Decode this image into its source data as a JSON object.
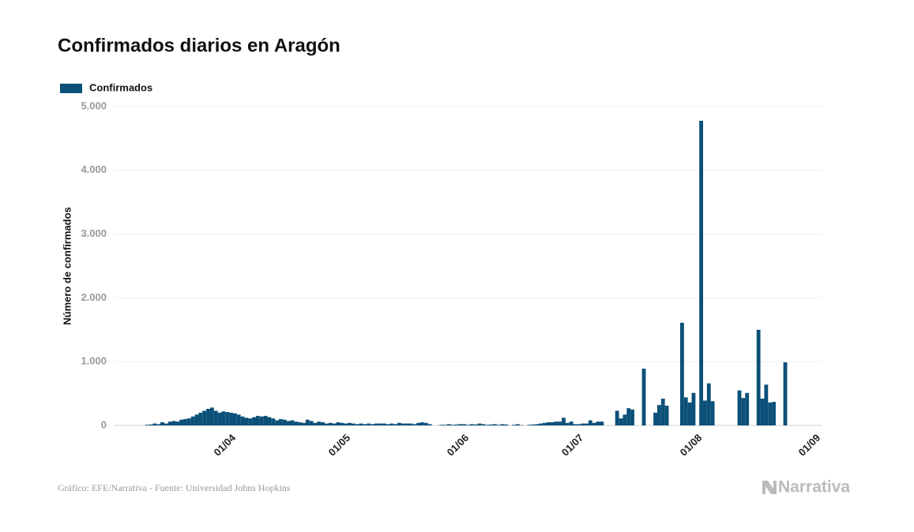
{
  "chart_data": {
    "type": "bar",
    "title": "Confirmados diarios en Aragón",
    "ylabel": "Número de confirmados",
    "source": "Gráfico: EFE/Narrativa - Fuente: Universidad Johns Hopkins",
    "brand": "Narrativa",
    "legend": "top-left",
    "grid": true,
    "ylim": [
      0,
      5000
    ],
    "yticks": [
      0,
      {
        "value": 1000,
        "label": "1.000"
      },
      {
        "value": 2000,
        "label": "2.000"
      },
      {
        "value": 3000,
        "label": "3.000"
      },
      {
        "value": 4000,
        "label": "4.000"
      },
      {
        "value": 5000,
        "label": "5.000"
      }
    ],
    "categories": [
      null,
      null,
      null,
      null,
      null,
      null,
      null,
      null,
      null,
      null,
      null,
      null,
      null,
      null,
      null,
      null,
      null,
      null,
      null,
      null,
      null,
      null,
      null,
      null,
      null,
      null,
      null,
      null,
      null,
      null,
      "01/04",
      null,
      null,
      null,
      null,
      null,
      null,
      null,
      null,
      null,
      null,
      null,
      null,
      null,
      null,
      null,
      null,
      null,
      null,
      null,
      null,
      null,
      null,
      null,
      null,
      null,
      null,
      null,
      null,
      null,
      "01/05",
      null,
      null,
      null,
      null,
      null,
      null,
      null,
      null,
      null,
      null,
      null,
      null,
      null,
      null,
      null,
      null,
      null,
      null,
      null,
      null,
      null,
      null,
      null,
      null,
      null,
      null,
      null,
      null,
      null,
      null,
      "01/06",
      null,
      null,
      null,
      null,
      null,
      null,
      null,
      null,
      null,
      null,
      null,
      null,
      null,
      null,
      null,
      null,
      null,
      null,
      null,
      null,
      null,
      null,
      null,
      null,
      null,
      null,
      null,
      null,
      null,
      "01/07",
      null,
      null,
      null,
      null,
      null,
      null,
      null,
      null,
      null,
      null,
      null,
      null,
      null,
      null,
      null,
      null,
      null,
      null,
      null,
      null,
      null,
      null,
      null,
      null,
      null,
      null,
      null,
      null,
      null,
      null,
      "01/08",
      null,
      null,
      null,
      null,
      null,
      null,
      null,
      null,
      null,
      null,
      null,
      null,
      null,
      null,
      null,
      null,
      null,
      null,
      null,
      null,
      null,
      null,
      null,
      null,
      null,
      null,
      null,
      null,
      null,
      null,
      "01/09",
      null
    ],
    "series": [
      {
        "name": "Confirmados",
        "color": "#0b5078",
        "values": [
          null,
          null,
          null,
          null,
          null,
          null,
          null,
          null,
          10,
          15,
          30,
          20,
          50,
          30,
          60,
          70,
          60,
          90,
          100,
          110,
          140,
          170,
          200,
          230,
          260,
          280,
          230,
          200,
          220,
          210,
          200,
          190,
          170,
          140,
          120,
          110,
          130,
          150,
          140,
          150,
          130,
          110,
          80,
          100,
          90,
          70,
          80,
          60,
          50,
          40,
          90,
          70,
          40,
          60,
          50,
          30,
          40,
          30,
          50,
          40,
          30,
          40,
          30,
          20,
          30,
          20,
          30,
          20,
          30,
          30,
          30,
          20,
          30,
          20,
          40,
          30,
          30,
          30,
          20,
          40,
          50,
          40,
          20,
          null,
          null,
          10,
          10,
          20,
          10,
          15,
          20,
          20,
          10,
          20,
          15,
          30,
          20,
          10,
          15,
          20,
          10,
          20,
          15,
          null,
          10,
          20,
          5,
          null,
          10,
          15,
          20,
          30,
          40,
          50,
          50,
          60,
          60,
          120,
          40,
          60,
          20,
          20,
          30,
          30,
          80,
          40,
          60,
          60,
          null,
          null,
          null,
          230,
          110,
          170,
          270,
          250,
          null,
          null,
          890,
          null,
          null,
          200,
          320,
          420,
          310,
          null,
          null,
          null,
          1610,
          440,
          360,
          510,
          null,
          4777,
          390,
          660,
          380,
          null,
          null,
          null,
          null,
          null,
          null,
          550,
          430,
          510,
          null,
          null,
          1500,
          420,
          640,
          360,
          370,
          null,
          null,
          990,
          null,
          null,
          null,
          null,
          null,
          null,
          null,
          null,
          null
        ]
      }
    ]
  }
}
